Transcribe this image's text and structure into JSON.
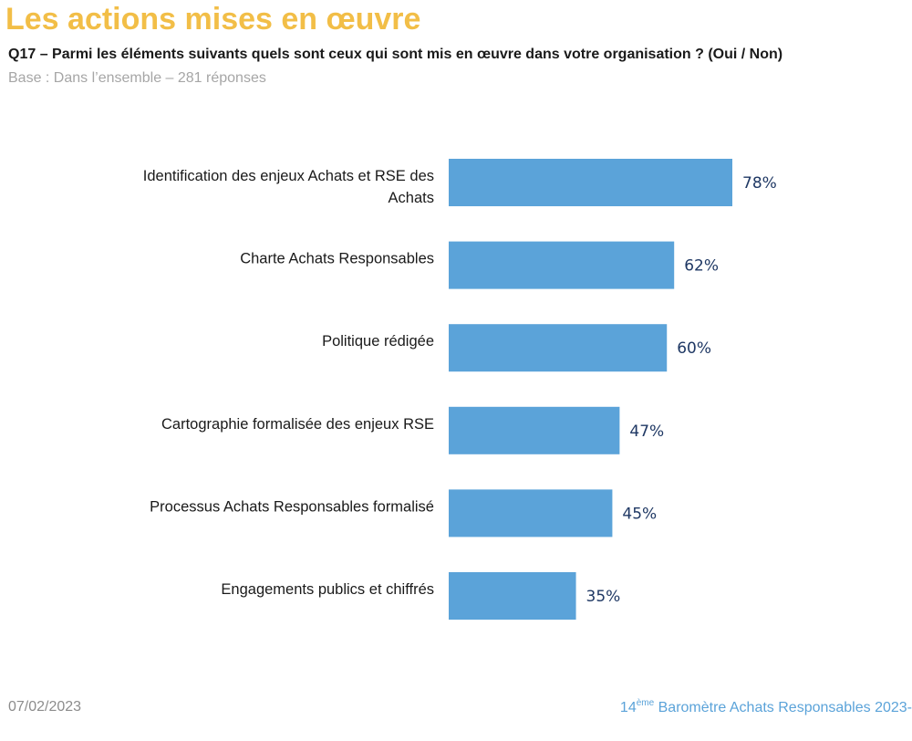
{
  "header": {
    "title": "Les actions mises en œuvre",
    "question": "Q17 – Parmi les éléments suivants quels sont ceux qui sont mis en œuvre dans votre organisation ? (Oui / Non)",
    "base": "Base : Dans l’ensemble –  281 réponses"
  },
  "footer": {
    "date": "07/02/2023",
    "edition_number": "14",
    "edition_suffix": "ème",
    "brand": " Baromètre Achats Responsables 2023-"
  },
  "colors": {
    "title": "#F2BE47",
    "bar": "#5BA3D9",
    "value_label": "#1F3864",
    "footer_brand": "#5BA3D9"
  },
  "chart_data": {
    "type": "bar",
    "orientation": "horizontal",
    "categories": [
      [
        "Identification des enjeux Achats et RSE des",
        "Achats"
      ],
      [
        "Charte Achats Responsables"
      ],
      [
        "Politique rédigée"
      ],
      [
        "Cartographie formalisée des enjeux RSE"
      ],
      [
        "Processus Achats Responsables formalisé"
      ],
      [
        "Engagements publics et chiffrés"
      ]
    ],
    "values": [
      78,
      62,
      60,
      47,
      45,
      35
    ],
    "value_labels": [
      "78%",
      "62%",
      "60%",
      "47%",
      "45%",
      "35%"
    ],
    "xlim": [
      0,
      100
    ],
    "grid": false,
    "legend": "none"
  }
}
